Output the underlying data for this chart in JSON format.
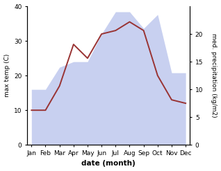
{
  "months": [
    "Jan",
    "Feb",
    "Mar",
    "Apr",
    "May",
    "Jun",
    "Jul",
    "Aug",
    "Sep",
    "Oct",
    "Nov",
    "Dec"
  ],
  "temp": [
    10.0,
    10.0,
    17.0,
    29.0,
    25.0,
    32.0,
    33.0,
    35.5,
    33.0,
    20.0,
    13.0,
    12.0
  ],
  "precip": [
    10.0,
    10.0,
    14.0,
    15.0,
    15.0,
    20.0,
    24.0,
    24.0,
    21.0,
    23.5,
    13.0,
    13.0
  ],
  "temp_color": "#993333",
  "precip_fill_color": "#c8d0f0",
  "ylim_left": [
    0,
    40
  ],
  "ylim_right": [
    0,
    25
  ],
  "xlabel": "date (month)",
  "ylabel_left": "max temp (C)",
  "ylabel_right": "med. precipitation (kg/m2)",
  "right_ticks": [
    0,
    5,
    10,
    15,
    20
  ],
  "left_ticks": [
    0,
    10,
    20,
    30,
    40
  ],
  "figsize": [
    3.18,
    2.47
  ],
  "dpi": 100
}
